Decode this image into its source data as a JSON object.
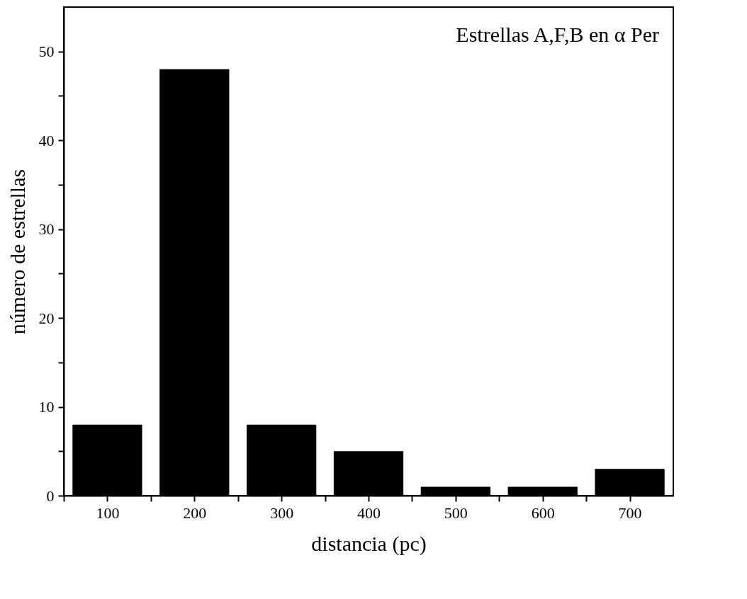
{
  "chart_data": {
    "type": "bar",
    "xlabel": "distancia (pc)",
    "ylabel": "número de estrellas",
    "annotations": [
      "Estrellas A,F,B en α Per"
    ],
    "x": [
      100,
      200,
      300,
      400,
      500,
      600,
      700
    ],
    "series": [
      {
        "color": "#000000",
        "values": [
          8,
          48,
          8,
          5,
          1,
          1,
          3
        ]
      }
    ],
    "xlim": [
      50,
      750
    ],
    "xticks": [
      {
        "value": 50,
        "label": null
      },
      100,
      {
        "value": 150,
        "label": null
      },
      200,
      {
        "value": 250,
        "label": null
      },
      300,
      {
        "value": 350,
        "label": null
      },
      400,
      {
        "value": 450,
        "label": null
      },
      500,
      {
        "value": 550,
        "label": null
      },
      600,
      {
        "value": 650,
        "label": null
      },
      700
    ],
    "ylim": [
      0,
      55
    ],
    "yticks": [
      0,
      {
        "value": 5,
        "label": null
      },
      10,
      {
        "value": 15,
        "label": null
      },
      20,
      {
        "value": 25,
        "label": null
      },
      30,
      {
        "value": 35,
        "label": null
      },
      40,
      {
        "value": 45,
        "label": null
      },
      50
    ],
    "grid": false
  }
}
